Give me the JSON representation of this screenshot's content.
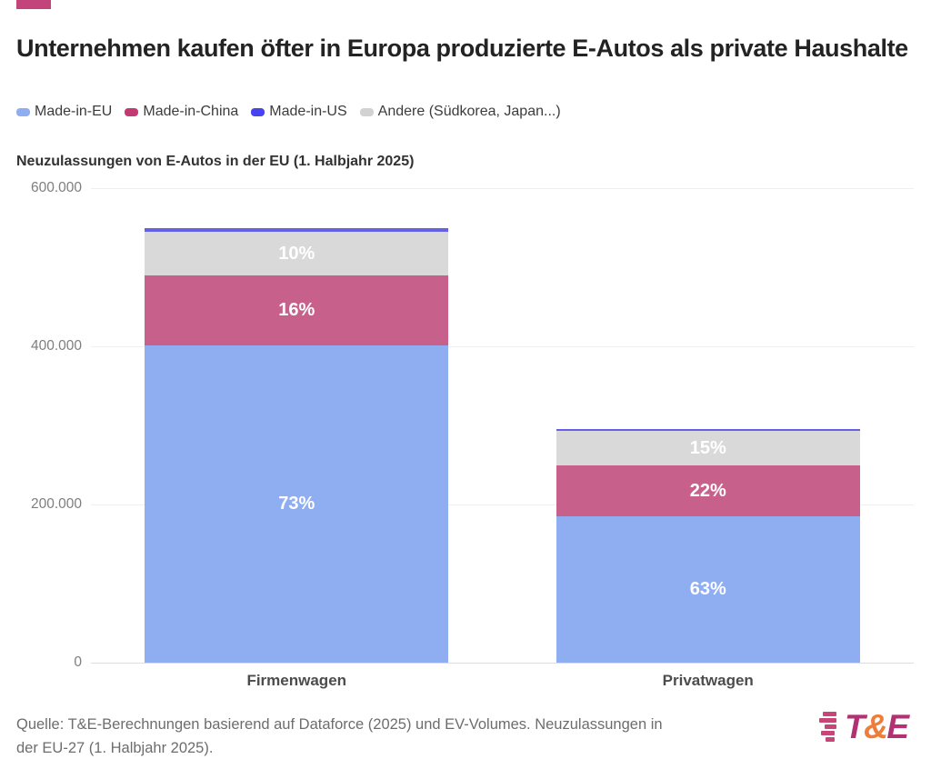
{
  "header": {
    "brand_color": "#c3437b",
    "title": "Unternehmen kaufen öfter in Europa produzierte E-Autos als private Haushalte"
  },
  "legend": {
    "items": [
      {
        "key": "made-in-eu",
        "label": "Made-in-EU",
        "color": "#8fadf1"
      },
      {
        "key": "made-in-china",
        "label": "Made-in-China",
        "color": "#c23a72"
      },
      {
        "key": "made-in-us",
        "label": "Made-in-US",
        "color": "#4743ef"
      },
      {
        "key": "andere",
        "label": "Andere (Südkorea, Japan...)",
        "color": "#d2d2d2"
      }
    ]
  },
  "chart_data": {
    "type": "bar",
    "stacked": true,
    "title": "Neuzulassungen von E-Autos in der EU (1. Halbjahr 2025)",
    "categories": [
      "Firmenwagen",
      "Privatwagen"
    ],
    "xlabel": "",
    "ylabel": "",
    "ylim": [
      0,
      600000
    ],
    "yticks": [
      {
        "value": 600000,
        "label": "600.000"
      },
      {
        "value": 400000,
        "label": "400.000"
      },
      {
        "value": 200000,
        "label": "200.000"
      },
      {
        "value": 0,
        "label": "0"
      }
    ],
    "grid": true,
    "legend_position": "top",
    "totals_estimated": [
      550000,
      295000
    ],
    "stack_order_bottom_to_top": [
      "made-in-eu",
      "made-in-china",
      "andere",
      "made-in-us"
    ],
    "series": [
      {
        "key": "made-in-eu",
        "name": "Made-in-EU",
        "color": "#8fadf1",
        "shares_pct": [
          73,
          63
        ],
        "labels": [
          "73%",
          "63%"
        ]
      },
      {
        "key": "made-in-china",
        "name": "Made-in-China",
        "color": "#c7618b",
        "shares_pct": [
          16,
          22
        ],
        "labels": [
          "16%",
          "22%"
        ]
      },
      {
        "key": "andere",
        "name": "Andere (Südkorea, Japan...)",
        "color": "#d9d9d9",
        "shares_pct": [
          10,
          15
        ],
        "labels": [
          "10%",
          "15%"
        ]
      },
      {
        "key": "made-in-us",
        "name": "Made-in-US",
        "color": "#6561e4",
        "shares_pct": [
          1,
          0.6
        ],
        "labels": [
          "",
          ""
        ]
      }
    ]
  },
  "footer": {
    "source": "Quelle: T&E-Berechnungen basierend auf Dataforce (2025) und EV-Volumes. Neuzulassungen in der EU-27 (1. Halbjahr 2025).",
    "source_lines": [
      "Quelle: T&E-Berechnungen basierend auf Dataforce (2025) und EV-Volumes. Neuzulassungen in",
      "der EU-27 (1. Halbjahr 2025)."
    ],
    "logo": {
      "t": "T",
      "amp": "&",
      "e": "E",
      "text_color": "#b23170",
      "amp_color": "#ef7d3a",
      "lines_color": "#c84579"
    }
  }
}
